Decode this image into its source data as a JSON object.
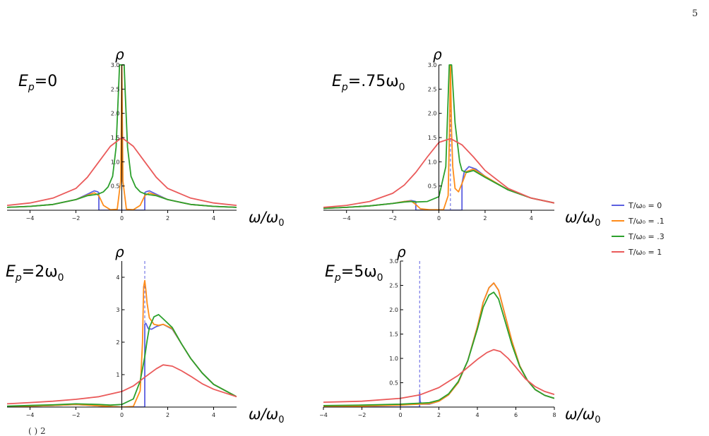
{
  "page_number": "5",
  "caption_fragment": "( ) 2",
  "colors": {
    "t0": "#5b5fe0",
    "t01": "#ff8c1a",
    "t03": "#2ca02c",
    "t1": "#ea5a5a",
    "axis": "#000000"
  },
  "legend": [
    {
      "label": "T/ω₀ = 0",
      "color": "#5b5fe0"
    },
    {
      "label": "T/ω₀ = .1",
      "color": "#ff8c1a"
    },
    {
      "label": "T/ω₀ = .3",
      "color": "#2ca02c"
    },
    {
      "label": "T/ω₀ = 1",
      "color": "#ea5a5a"
    }
  ],
  "chart_data": [
    {
      "type": "line",
      "panel_label": "Ep=0",
      "panel_label_base": "E",
      "panel_label_sub": "p",
      "panel_label_rest": "=0",
      "ylabel": "ρ",
      "xlabel": "ω/ω₀",
      "xlim": [
        -5,
        5
      ],
      "ylim": [
        0,
        3.0
      ],
      "xticks": [
        -4,
        -2,
        0,
        2,
        4
      ],
      "yticks": [
        0.5,
        1.0,
        1.5,
        2.0,
        2.5,
        3.0
      ],
      "ytick_labels": [
        "0.5",
        "1.0",
        "1.5",
        "2.0",
        "2.5",
        "3.0"
      ],
      "dashed_x": 0,
      "series": [
        {
          "name": "T/ω₀ = 0",
          "color": "#5b5fe0",
          "x": [
            -5,
            -4,
            -3,
            -2,
            -1.5,
            -1.2,
            -1.05,
            -1.0,
            -0.999,
            0.999,
            1.0,
            1.05,
            1.2,
            1.5,
            2,
            3,
            4,
            5
          ],
          "y": [
            0.06,
            0.08,
            0.12,
            0.22,
            0.33,
            0.4,
            0.38,
            0.36,
            0.0,
            0.0,
            0.36,
            0.38,
            0.4,
            0.33,
            0.22,
            0.12,
            0.08,
            0.06
          ]
        },
        {
          "name": "T/ω₀ = .1",
          "color": "#ff8c1a",
          "x": [
            -5,
            -4,
            -3,
            -2,
            -1.5,
            -1.2,
            -1.0,
            -0.8,
            -0.5,
            -0.2,
            -0.05,
            0,
            0.05,
            0.2,
            0.5,
            0.8,
            1.0,
            1.2,
            1.5,
            2,
            3,
            4,
            5
          ],
          "y": [
            0.06,
            0.08,
            0.12,
            0.22,
            0.31,
            0.36,
            0.3,
            0.1,
            0.01,
            0.02,
            0.6,
            3.0,
            0.6,
            0.02,
            0.01,
            0.1,
            0.3,
            0.36,
            0.31,
            0.22,
            0.12,
            0.08,
            0.06
          ]
        },
        {
          "name": "T/ω₀ = .3",
          "color": "#2ca02c",
          "x": [
            -5,
            -4,
            -3,
            -2,
            -1.5,
            -1.2,
            -1.0,
            -0.8,
            -0.6,
            -0.4,
            -0.25,
            -0.15,
            -0.1,
            0.1,
            0.15,
            0.25,
            0.4,
            0.6,
            0.8,
            1.0,
            1.2,
            1.5,
            2,
            3,
            4,
            5
          ],
          "y": [
            0.06,
            0.08,
            0.12,
            0.22,
            0.3,
            0.32,
            0.34,
            0.38,
            0.48,
            0.7,
            1.3,
            2.4,
            3.0,
            3.0,
            2.4,
            1.3,
            0.7,
            0.48,
            0.38,
            0.34,
            0.32,
            0.3,
            0.22,
            0.12,
            0.08,
            0.06
          ]
        },
        {
          "name": "T/ω₀ = 1",
          "color": "#ea5a5a",
          "x": [
            -5,
            -4,
            -3,
            -2,
            -1.5,
            -1,
            -0.5,
            0,
            0.5,
            1,
            1.5,
            2,
            3,
            4,
            5
          ],
          "y": [
            0.1,
            0.15,
            0.25,
            0.45,
            0.68,
            1.0,
            1.32,
            1.5,
            1.32,
            1.0,
            0.68,
            0.45,
            0.25,
            0.15,
            0.1
          ]
        }
      ]
    },
    {
      "type": "line",
      "panel_label": "Ep=.75ω0",
      "panel_label_base": "E",
      "panel_label_sub": "p",
      "panel_label_rest": "=.75ω",
      "panel_label_sub2": "0",
      "ylabel": "ρ",
      "xlabel": "ω/ω₀",
      "xlim": [
        -5,
        5
      ],
      "ylim": [
        0,
        3.0
      ],
      "xticks": [
        -4,
        -2,
        0,
        2,
        4
      ],
      "yticks": [
        0.5,
        1.0,
        1.5,
        2.0,
        2.5,
        3.0
      ],
      "ytick_labels": [
        "0.5",
        "1.0",
        "1.5",
        "2.0",
        "2.5",
        "3.0"
      ],
      "dashed_x": 0.5,
      "series": [
        {
          "name": "T/ω₀ = 0",
          "color": "#5b5fe0",
          "x": [
            -5,
            -4,
            -3,
            -2,
            -1.5,
            -1.2,
            -1.0,
            -0.999,
            0.999,
            1.0,
            1.1,
            1.3,
            1.6,
            2,
            3,
            4,
            5
          ],
          "y": [
            0.04,
            0.06,
            0.09,
            0.14,
            0.18,
            0.2,
            0.18,
            0.0,
            0.0,
            0.55,
            0.8,
            0.9,
            0.85,
            0.7,
            0.42,
            0.25,
            0.15
          ]
        },
        {
          "name": "T/ω₀ = .1",
          "color": "#ff8c1a",
          "x": [
            -5,
            -4,
            -3,
            -2,
            -1.5,
            -1.2,
            -1.0,
            -0.8,
            -0.4,
            0.2,
            0.4,
            0.45,
            0.5,
            0.55,
            0.6,
            0.7,
            0.85,
            1.0,
            1.2,
            1.5,
            2,
            3,
            4,
            5
          ],
          "y": [
            0.04,
            0.06,
            0.09,
            0.14,
            0.18,
            0.19,
            0.12,
            0.03,
            0.01,
            0.01,
            0.3,
            1.4,
            3.0,
            1.6,
            0.9,
            0.45,
            0.38,
            0.55,
            0.8,
            0.85,
            0.7,
            0.42,
            0.25,
            0.15
          ]
        },
        {
          "name": "T/ω₀ = .3",
          "color": "#2ca02c",
          "x": [
            -5,
            -4,
            -3,
            -2,
            -1.5,
            -1.2,
            -1.0,
            -0.5,
            0,
            0.3,
            0.45,
            0.55,
            0.7,
            0.9,
            1.0,
            1.2,
            1.5,
            2,
            3,
            4,
            5
          ],
          "y": [
            0.04,
            0.06,
            0.09,
            0.14,
            0.17,
            0.18,
            0.17,
            0.18,
            0.28,
            0.9,
            3.0,
            3.0,
            1.8,
            1.0,
            0.82,
            0.78,
            0.82,
            0.68,
            0.42,
            0.25,
            0.15
          ]
        },
        {
          "name": "T/ω₀ = 1",
          "color": "#ea5a5a",
          "x": [
            -5,
            -4,
            -3,
            -2,
            -1.5,
            -1,
            -0.5,
            0,
            0.5,
            1,
            1.5,
            2,
            3,
            4,
            5
          ],
          "y": [
            0.06,
            0.1,
            0.18,
            0.35,
            0.52,
            0.78,
            1.1,
            1.4,
            1.48,
            1.35,
            1.1,
            0.82,
            0.45,
            0.25,
            0.15
          ]
        }
      ]
    },
    {
      "type": "line",
      "panel_label": "Ep=2ω0",
      "panel_label_base": "E",
      "panel_label_sub": "p",
      "panel_label_rest": "=2ω",
      "panel_label_sub2": "0",
      "ylabel": "ρ",
      "xlabel": "ω/ω₀",
      "xlim": [
        -5,
        5
      ],
      "ylim": [
        0,
        4.5
      ],
      "xticks": [
        -4,
        -2,
        0,
        2,
        4
      ],
      "yticks": [
        1,
        2,
        3,
        4
      ],
      "ytick_labels": [
        "1",
        "2",
        "3",
        "4"
      ],
      "dashed_x": 1,
      "series": [
        {
          "name": "T/ω₀ = 0",
          "color": "#5b5fe0",
          "x": [
            -5,
            -4,
            -3,
            -2,
            -1,
            -0.5,
            0,
            0.999,
            1.0,
            1.05,
            1.15,
            1.3,
            1.5,
            1.8,
            2.2,
            2.6,
            3,
            3.5,
            4,
            5
          ],
          "y": [
            0.02,
            0.03,
            0.05,
            0.08,
            0.04,
            0.02,
            0.0,
            0.0,
            2.55,
            2.58,
            2.42,
            2.4,
            2.48,
            2.55,
            2.4,
            1.95,
            1.5,
            1.05,
            0.7,
            0.32
          ]
        },
        {
          "name": "T/ω₀ = .1",
          "color": "#ff8c1a",
          "x": [
            -5,
            -4,
            -3,
            -2,
            -1,
            -0.5,
            0,
            0.5,
            0.8,
            0.9,
            0.95,
            1.0,
            1.05,
            1.1,
            1.2,
            1.4,
            1.6,
            1.8,
            2.2,
            2.6,
            3,
            3.5,
            4,
            5
          ],
          "y": [
            0.02,
            0.03,
            0.05,
            0.08,
            0.04,
            0.02,
            0.0,
            0.02,
            0.5,
            2.0,
            3.7,
            3.9,
            3.6,
            3.2,
            2.75,
            2.55,
            2.52,
            2.55,
            2.42,
            1.95,
            1.5,
            1.05,
            0.7,
            0.32
          ]
        },
        {
          "name": "T/ω₀ = .3",
          "color": "#2ca02c",
          "x": [
            -5,
            -4,
            -3,
            -2,
            -1,
            -0.5,
            0,
            0.5,
            0.8,
            1.0,
            1.1,
            1.2,
            1.4,
            1.6,
            1.8,
            2.2,
            2.6,
            3,
            3.5,
            4,
            5
          ],
          "y": [
            0.03,
            0.05,
            0.07,
            0.1,
            0.08,
            0.06,
            0.08,
            0.25,
            0.8,
            1.55,
            2.05,
            2.45,
            2.78,
            2.85,
            2.72,
            2.45,
            1.95,
            1.5,
            1.05,
            0.7,
            0.32
          ]
        },
        {
          "name": "T/ω₀ = 1",
          "color": "#ea5a5a",
          "x": [
            -5,
            -4,
            -3,
            -2,
            -1,
            0,
            0.5,
            1,
            1.5,
            1.8,
            2.2,
            2.6,
            3,
            3.5,
            4,
            5
          ],
          "y": [
            0.1,
            0.14,
            0.18,
            0.24,
            0.32,
            0.48,
            0.65,
            0.92,
            1.18,
            1.3,
            1.26,
            1.12,
            0.95,
            0.72,
            0.55,
            0.32
          ]
        }
      ]
    },
    {
      "type": "line",
      "panel_label": "Ep=5ω0",
      "panel_label_base": "E",
      "panel_label_sub": "p",
      "panel_label_rest": "=5ω",
      "panel_label_sub2": "0",
      "ylabel": "ρ",
      "xlabel": "ω/ω₀",
      "xlim": [
        -4,
        8
      ],
      "ylim": [
        0,
        3.0
      ],
      "xticks": [
        -4,
        -2,
        0,
        2,
        4,
        6,
        8
      ],
      "yticks": [
        0.5,
        1.0,
        1.5,
        2.0,
        2.5,
        3.0
      ],
      "ytick_labels": [
        "0.5",
        "1.0",
        "1.5",
        "2.0",
        "2.5",
        "3.0"
      ],
      "dashed_x": 1,
      "series": [
        {
          "name": "T/ω₀ = 0",
          "color": "#5b5fe0",
          "x": [
            -4,
            0,
            0.999,
            1.0,
            1.02,
            1.1,
            1.5,
            2,
            2.5,
            3,
            3.5,
            4,
            4.3,
            4.6,
            4.85,
            5.1,
            5.4,
            5.8,
            6.2,
            6.6,
            7,
            7.5,
            8
          ],
          "y": [
            0.0,
            0.0,
            0.0,
            0.3,
            0.12,
            0.06,
            0.06,
            0.12,
            0.25,
            0.5,
            0.95,
            1.65,
            2.15,
            2.45,
            2.55,
            2.4,
            1.95,
            1.35,
            0.85,
            0.55,
            0.36,
            0.24,
            0.18
          ]
        },
        {
          "name": "T/ω₀ = .1",
          "color": "#ff8c1a",
          "x": [
            -4,
            -2,
            0,
            0.5,
            1,
            1.5,
            2,
            2.5,
            3,
            3.5,
            4,
            4.3,
            4.6,
            4.85,
            5.1,
            5.4,
            5.8,
            6.2,
            6.6,
            7,
            7.5,
            8
          ],
          "y": [
            0.01,
            0.02,
            0.04,
            0.05,
            0.06,
            0.07,
            0.12,
            0.25,
            0.5,
            0.95,
            1.65,
            2.15,
            2.45,
            2.55,
            2.4,
            1.95,
            1.35,
            0.85,
            0.55,
            0.36,
            0.24,
            0.18
          ]
        },
        {
          "name": "T/ω₀ = .3",
          "color": "#2ca02c",
          "x": [
            -4,
            -2,
            0,
            0.5,
            1,
            1.5,
            2,
            2.5,
            3,
            3.5,
            4,
            4.3,
            4.6,
            4.85,
            5.1,
            5.4,
            5.8,
            6.2,
            6.6,
            7,
            7.5,
            8
          ],
          "y": [
            0.03,
            0.04,
            0.06,
            0.07,
            0.08,
            0.09,
            0.14,
            0.27,
            0.52,
            0.95,
            1.6,
            2.05,
            2.3,
            2.36,
            2.22,
            1.82,
            1.28,
            0.83,
            0.55,
            0.36,
            0.24,
            0.18
          ]
        },
        {
          "name": "T/ω₀ = 1",
          "color": "#ea5a5a",
          "x": [
            -4,
            -2,
            0,
            1,
            2,
            3,
            4,
            4.5,
            4.85,
            5.2,
            5.6,
            6,
            6.5,
            7,
            7.5,
            8
          ],
          "y": [
            0.1,
            0.12,
            0.18,
            0.25,
            0.4,
            0.65,
            0.98,
            1.12,
            1.18,
            1.14,
            1.0,
            0.82,
            0.58,
            0.42,
            0.32,
            0.26
          ]
        }
      ]
    }
  ]
}
